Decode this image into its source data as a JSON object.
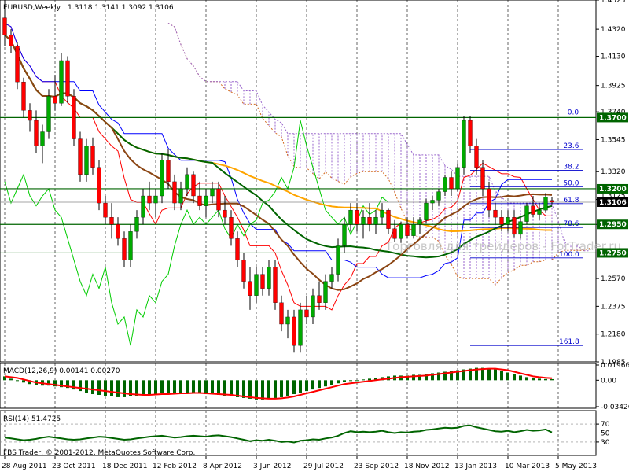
{
  "header": {
    "symbol": "EURUSD,Weekly",
    "ohlc": "1.3118 1.3141 1.3092 1.3106"
  },
  "footer": {
    "copyright": "FBS Trader, © 2001-2012, MetaQuotes Software Corp."
  },
  "watermark": "Торговля для трейдеров - ForTrader.ru",
  "colors": {
    "bull": "#00aa00",
    "bear": "#ff0000",
    "tenkan": "#ff0000",
    "kijun": "#0000ff",
    "chikou": "#00cc00",
    "senkou_a": "#d2691e",
    "senkou_b": "#9966cc",
    "ma_orange": "#ffa500",
    "ma_green": "#006400",
    "ma_brown": "#8b4513",
    "macd_hist": "#006400",
    "macd_signal": "#ff0000",
    "rsi": "#006400"
  },
  "chart_data": [
    {
      "type": "candlestick",
      "title": "EURUSD,Weekly",
      "ylim": [
        1.1985,
        1.4525
      ],
      "y_ticks": [
        "1.4525",
        "1.4320",
        "1.4130",
        "1.3925",
        "1.3740",
        "1.3545",
        "1.3320",
        "1.3125",
        "1.2950",
        "1.2750",
        "1.2570",
        "1.2375",
        "1.2180",
        "1.1985"
      ],
      "x_ticks": [
        "28 Aug 2011",
        "23 Oct 2011",
        "18 Dec 2011",
        "12 Feb 2012",
        "8 Apr 2012",
        "3 Jun 2012",
        "29 Jul 2012",
        "23 Sep 2012",
        "18 Nov 2012",
        "13 Jan 2013",
        "10 Mar 2013",
        "5 May 2013"
      ],
      "candles_ohlc": [
        [
          1.44,
          1.4525,
          1.42,
          1.428
        ],
        [
          1.428,
          1.432,
          1.415,
          1.42
        ],
        [
          1.42,
          1.423,
          1.39,
          1.395
        ],
        [
          1.395,
          1.398,
          1.37,
          1.375
        ],
        [
          1.375,
          1.38,
          1.36,
          1.368
        ],
        [
          1.368,
          1.375,
          1.345,
          1.35
        ],
        [
          1.35,
          1.365,
          1.338,
          1.36
        ],
        [
          1.36,
          1.39,
          1.355,
          1.385
        ],
        [
          1.385,
          1.4,
          1.375,
          1.38
        ],
        [
          1.38,
          1.415,
          1.378,
          1.41
        ],
        [
          1.41,
          1.413,
          1.38,
          1.385
        ],
        [
          1.385,
          1.39,
          1.35,
          1.355
        ],
        [
          1.355,
          1.36,
          1.325,
          1.33
        ],
        [
          1.33,
          1.355,
          1.325,
          1.35
        ],
        [
          1.35,
          1.356,
          1.33,
          1.335
        ],
        [
          1.335,
          1.34,
          1.305,
          1.31
        ],
        [
          1.31,
          1.315,
          1.295,
          1.3
        ],
        [
          1.3,
          1.31,
          1.285,
          1.295
        ],
        [
          1.295,
          1.3,
          1.28,
          1.285
        ],
        [
          1.285,
          1.29,
          1.265,
          1.27
        ],
        [
          1.27,
          1.295,
          1.265,
          1.29
        ],
        [
          1.29,
          1.305,
          1.285,
          1.3
        ],
        [
          1.3,
          1.32,
          1.295,
          1.315
        ],
        [
          1.315,
          1.325,
          1.305,
          1.31
        ],
        [
          1.31,
          1.32,
          1.3,
          1.315
        ],
        [
          1.315,
          1.345,
          1.31,
          1.34
        ],
        [
          1.34,
          1.348,
          1.32,
          1.325
        ],
        [
          1.325,
          1.33,
          1.305,
          1.31
        ],
        [
          1.31,
          1.325,
          1.305,
          1.32
        ],
        [
          1.32,
          1.335,
          1.315,
          1.33
        ],
        [
          1.33,
          1.332,
          1.31,
          1.315
        ],
        [
          1.315,
          1.325,
          1.305,
          1.308
        ],
        [
          1.308,
          1.32,
          1.3,
          1.315
        ],
        [
          1.315,
          1.325,
          1.31,
          1.32
        ],
        [
          1.32,
          1.325,
          1.3,
          1.305
        ],
        [
          1.305,
          1.315,
          1.295,
          1.3
        ],
        [
          1.3,
          1.305,
          1.28,
          1.285
        ],
        [
          1.285,
          1.29,
          1.265,
          1.27
        ],
        [
          1.27,
          1.275,
          1.25,
          1.255
        ],
        [
          1.255,
          1.265,
          1.235,
          1.245
        ],
        [
          1.245,
          1.265,
          1.24,
          1.26
        ],
        [
          1.26,
          1.265,
          1.245,
          1.25
        ],
        [
          1.25,
          1.27,
          1.245,
          1.265
        ],
        [
          1.265,
          1.27,
          1.235,
          1.24
        ],
        [
          1.24,
          1.245,
          1.22,
          1.225
        ],
        [
          1.225,
          1.235,
          1.215,
          1.23
        ],
        [
          1.23,
          1.235,
          1.205,
          1.21
        ],
        [
          1.21,
          1.24,
          1.205,
          1.235
        ],
        [
          1.235,
          1.245,
          1.225,
          1.23
        ],
        [
          1.23,
          1.25,
          1.225,
          1.245
        ],
        [
          1.245,
          1.255,
          1.235,
          1.24
        ],
        [
          1.24,
          1.26,
          1.235,
          1.255
        ],
        [
          1.255,
          1.265,
          1.25,
          1.26
        ],
        [
          1.26,
          1.285,
          1.255,
          1.28
        ],
        [
          1.28,
          1.3,
          1.275,
          1.295
        ],
        [
          1.295,
          1.31,
          1.29,
          1.305
        ],
        [
          1.305,
          1.31,
          1.29,
          1.295
        ],
        [
          1.295,
          1.305,
          1.285,
          1.3
        ],
        [
          1.3,
          1.31,
          1.29,
          1.295
        ],
        [
          1.295,
          1.305,
          1.288,
          1.3
        ],
        [
          1.3,
          1.31,
          1.295,
          1.305
        ],
        [
          1.305,
          1.306,
          1.288,
          1.292
        ],
        [
          1.292,
          1.298,
          1.283,
          1.285
        ],
        [
          1.285,
          1.297,
          1.282,
          1.295
        ],
        [
          1.295,
          1.3,
          1.285,
          1.287
        ],
        [
          1.287,
          1.3,
          1.285,
          1.295
        ],
        [
          1.295,
          1.3,
          1.288,
          1.298
        ],
        [
          1.298,
          1.313,
          1.296,
          1.31
        ],
        [
          1.31,
          1.315,
          1.305,
          1.312
        ],
        [
          1.312,
          1.32,
          1.308,
          1.318
        ],
        [
          1.318,
          1.33,
          1.315,
          1.328
        ],
        [
          1.328,
          1.332,
          1.315,
          1.32
        ],
        [
          1.32,
          1.338,
          1.318,
          1.335
        ],
        [
          1.335,
          1.371,
          1.33,
          1.368
        ],
        [
          1.368,
          1.371,
          1.345,
          1.35
        ],
        [
          1.35,
          1.355,
          1.33,
          1.335
        ],
        [
          1.335,
          1.34,
          1.315,
          1.32
        ],
        [
          1.32,
          1.325,
          1.3,
          1.305
        ],
        [
          1.305,
          1.31,
          1.295,
          1.3
        ],
        [
          1.3,
          1.305,
          1.29,
          1.295
        ],
        [
          1.295,
          1.305,
          1.29,
          1.3
        ],
        [
          1.3,
          1.305,
          1.286,
          1.288
        ],
        [
          1.288,
          1.3,
          1.285,
          1.297
        ],
        [
          1.297,
          1.31,
          1.295,
          1.308
        ],
        [
          1.308,
          1.315,
          1.3,
          1.302
        ],
        [
          1.302,
          1.31,
          1.298,
          1.305
        ],
        [
          1.305,
          1.317,
          1.303,
          1.314
        ],
        [
          1.3118,
          1.3141,
          1.3092,
          1.3106
        ]
      ],
      "price_levels": [
        {
          "label": "1.3700",
          "value": 1.37
        },
        {
          "label": "1.3200",
          "value": 1.32
        },
        {
          "label": "1.2950",
          "value": 1.295
        },
        {
          "label": "1.2750",
          "value": 1.275
        },
        {
          "label": "1.3106",
          "value": 1.3106
        }
      ],
      "fibonacci": [
        {
          "label": "0.0",
          "value": 1.371
        },
        {
          "label": "23.6",
          "value": 1.3475
        },
        {
          "label": "38.2",
          "value": 1.333
        },
        {
          "label": "50.0",
          "value": 1.3213
        },
        {
          "label": "61.8",
          "value": 1.3096
        },
        {
          "label": "78.6",
          "value": 1.2928
        },
        {
          "label": "100.0",
          "value": 1.2715
        },
        {
          "label": "161.8",
          "value": 1.21
        }
      ],
      "price_axis_partial_label": "1.3125"
    },
    {
      "type": "bar",
      "title": "MACD(12,26,9) 0.00141 0.00270",
      "ylim": [
        -0.03426,
        0.01966
      ],
      "y_ticks": [
        "0.01966",
        "0.00",
        "-0.03426"
      ],
      "histogram": [
        0.005,
        0.002,
        -0.001,
        -0.003,
        -0.005,
        -0.006,
        -0.007,
        -0.007,
        -0.008,
        -0.009,
        -0.01,
        -0.012,
        -0.014,
        -0.016,
        -0.018,
        -0.019,
        -0.02,
        -0.021,
        -0.022,
        -0.022,
        -0.021,
        -0.02,
        -0.019,
        -0.018,
        -0.018,
        -0.017,
        -0.017,
        -0.017,
        -0.016,
        -0.016,
        -0.016,
        -0.017,
        -0.018,
        -0.018,
        -0.019,
        -0.02,
        -0.021,
        -0.022,
        -0.023,
        -0.024,
        -0.025,
        -0.025,
        -0.024,
        -0.023,
        -0.022,
        -0.02,
        -0.018,
        -0.016,
        -0.014,
        -0.012,
        -0.01,
        -0.008,
        -0.006,
        -0.004,
        -0.002,
        -0.001,
        0.0,
        0.001,
        0.002,
        0.003,
        0.004,
        0.005,
        0.006,
        0.006,
        0.006,
        0.007,
        0.007,
        0.008,
        0.009,
        0.01,
        0.011,
        0.012,
        0.013,
        0.014,
        0.015,
        0.016,
        0.016,
        0.015,
        0.014,
        0.012,
        0.01,
        0.008,
        0.006,
        0.004,
        0.003,
        0.002,
        0.0015,
        0.0014
      ],
      "signal": [
        0.005,
        0.004,
        0.003,
        0.001,
        -0.001,
        -0.003,
        -0.004,
        -0.005,
        -0.006,
        -0.007,
        -0.008,
        -0.009,
        -0.01,
        -0.011,
        -0.012,
        -0.013,
        -0.014,
        -0.015,
        -0.016,
        -0.017,
        -0.018,
        -0.0185,
        -0.019,
        -0.019,
        -0.0185,
        -0.018,
        -0.018,
        -0.0175,
        -0.017,
        -0.017,
        -0.0165,
        -0.0165,
        -0.017,
        -0.0175,
        -0.018,
        -0.0185,
        -0.019,
        -0.02,
        -0.021,
        -0.022,
        -0.023,
        -0.0235,
        -0.024,
        -0.024,
        -0.0235,
        -0.0225,
        -0.021,
        -0.019,
        -0.017,
        -0.015,
        -0.013,
        -0.011,
        -0.009,
        -0.007,
        -0.005,
        -0.004,
        -0.003,
        -0.002,
        -0.001,
        0.0,
        0.001,
        0.002,
        0.003,
        0.004,
        0.0045,
        0.005,
        0.0055,
        0.006,
        0.007,
        0.008,
        0.009,
        0.01,
        0.011,
        0.012,
        0.013,
        0.014,
        0.0145,
        0.015,
        0.015,
        0.014,
        0.013,
        0.011,
        0.009,
        0.007,
        0.005,
        0.004,
        0.0032,
        0.0027
      ]
    },
    {
      "type": "line",
      "title": "RSI(14) 51.4725",
      "ylim": [
        0,
        100
      ],
      "y_ticks": [
        "70",
        "50",
        "30"
      ],
      "values": [
        40,
        38,
        36,
        34,
        35,
        37,
        40,
        42,
        40,
        38,
        36,
        35,
        36,
        38,
        40,
        42,
        41,
        39,
        37,
        35,
        36,
        38,
        40,
        42,
        43,
        44,
        42,
        40,
        41,
        43,
        44,
        43,
        42,
        44,
        45,
        43,
        41,
        38,
        35,
        32,
        34,
        33,
        35,
        33,
        30,
        31,
        29,
        33,
        34,
        36,
        35,
        38,
        40,
        44,
        50,
        54,
        52,
        53,
        52,
        53,
        55,
        52,
        50,
        52,
        51,
        53,
        54,
        57,
        58,
        60,
        62,
        61,
        62,
        66,
        67,
        63,
        60,
        57,
        54,
        53,
        55,
        52,
        54,
        57,
        55,
        56,
        58,
        51.47
      ]
    }
  ]
}
